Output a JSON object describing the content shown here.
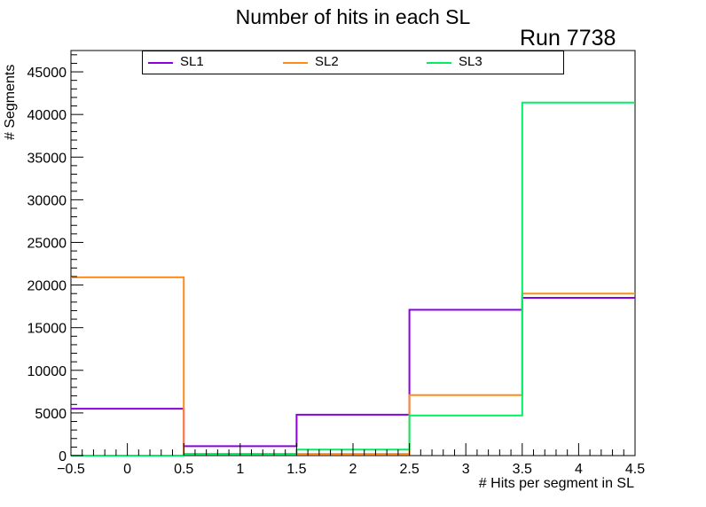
{
  "chart_data": {
    "type": "histogram",
    "title": "Number of hits in each SL",
    "annotation": "Run 7738",
    "xlabel": "# Hits per segment in SL",
    "ylabel": "# Segments",
    "xlim": [
      -0.5,
      4.5
    ],
    "ylim": [
      0,
      47500
    ],
    "bin_edges": [
      -0.5,
      0.5,
      1.5,
      2.5,
      3.5,
      4.5
    ],
    "x_ticks": [
      "−0.5",
      "0",
      "0.5",
      "1",
      "1.5",
      "2",
      "2.5",
      "3",
      "3.5",
      "4",
      "4.5"
    ],
    "y_ticks": [
      "0",
      "5000",
      "10000",
      "15000",
      "20000",
      "25000",
      "30000",
      "35000",
      "40000",
      "45000"
    ],
    "grid": false,
    "legend_position": "top",
    "series": [
      {
        "name": "SL1",
        "color": "#8b00e0",
        "values": [
          5500,
          1100,
          4800,
          17100,
          18500
        ]
      },
      {
        "name": "SL2",
        "color": "#ff8c1a",
        "values": [
          20900,
          200,
          200,
          7100,
          19000
        ]
      },
      {
        "name": "SL3",
        "color": "#00ee66",
        "values": [
          0,
          200,
          700,
          4700,
          41400
        ]
      }
    ]
  }
}
